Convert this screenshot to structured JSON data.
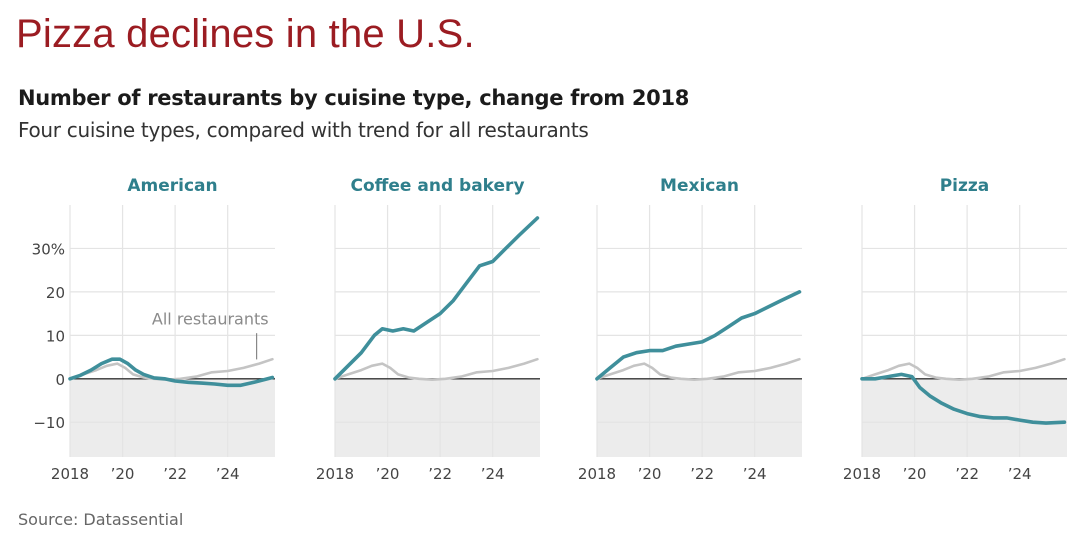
{
  "headline": "Pizza declines in the U.S.",
  "title": "Number of restaurants by cuisine type, change from 2018",
  "subtitle": "Four cuisine types, compared with trend for all restaurants",
  "source": "Source: Datassential",
  "colors": {
    "headline": "#9b1c22",
    "series": "#3f8f9b",
    "reference": "#c4c4c4",
    "negative_shade": "#ececec",
    "grid": "#ffffff",
    "panel_bg": "#ffffff",
    "zero_line": "#333333",
    "panel_title": "#2f7f8c",
    "tick": "#444444"
  },
  "chart_data": {
    "type": "line",
    "layout": "small-multiples",
    "x_range": [
      2018,
      2025.8
    ],
    "ylim": [
      -18,
      40
    ],
    "y_ticks": [
      -10,
      0,
      10,
      20,
      30
    ],
    "y_tick_labels": [
      "−10",
      "0",
      "10",
      "20",
      "30%"
    ],
    "x_ticks": [
      2018,
      2020,
      2022,
      2024
    ],
    "x_tick_labels": [
      "2018",
      "’20",
      "’22",
      "’24"
    ],
    "annotation": {
      "text": "All restaurants",
      "panel": "American",
      "at_x": 2025.1,
      "at_y": 4
    },
    "reference_series": {
      "name": "All restaurants",
      "x": [
        2018,
        2018.5,
        2019,
        2019.4,
        2019.8,
        2020.1,
        2020.4,
        2020.8,
        2021.2,
        2021.7,
        2022.2,
        2022.8,
        2023.4,
        2024,
        2024.6,
        2025.2,
        2025.7
      ],
      "values": [
        0,
        1,
        2,
        3,
        3.5,
        2.5,
        1,
        0.3,
        0,
        -0.2,
        0,
        0.5,
        1.5,
        1.8,
        2.5,
        3.5,
        4.5
      ]
    },
    "panels": [
      {
        "name": "American",
        "x": [
          2018,
          2018.4,
          2018.8,
          2019.2,
          2019.6,
          2019.9,
          2020.2,
          2020.5,
          2020.8,
          2021.2,
          2021.6,
          2022,
          2022.5,
          2023,
          2023.5,
          2024,
          2024.5,
          2025,
          2025.7
        ],
        "values": [
          0,
          0.8,
          2,
          3.5,
          4.5,
          4.5,
          3.5,
          2,
          1,
          0.2,
          0,
          -0.5,
          -0.8,
          -1,
          -1.2,
          -1.5,
          -1.5,
          -0.8,
          0.3
        ]
      },
      {
        "name": "Coffee and bakery",
        "x": [
          2018,
          2018.5,
          2019,
          2019.5,
          2019.8,
          2020.2,
          2020.6,
          2021,
          2021.5,
          2022,
          2022.5,
          2023,
          2023.5,
          2024,
          2024.5,
          2025,
          2025.7
        ],
        "values": [
          0,
          3,
          6,
          10,
          11.5,
          11,
          11.5,
          11,
          13,
          15,
          18,
          22,
          26,
          27,
          30,
          33,
          37
        ]
      },
      {
        "name": "Mexican",
        "x": [
          2018,
          2018.5,
          2019,
          2019.5,
          2020,
          2020.5,
          2021,
          2021.5,
          2022,
          2022.5,
          2023,
          2023.5,
          2024,
          2024.5,
          2025,
          2025.7
        ],
        "values": [
          0,
          2.5,
          5,
          6,
          6.5,
          6.5,
          7.5,
          8,
          8.5,
          10,
          12,
          14,
          15,
          16.5,
          18,
          20
        ]
      },
      {
        "name": "Pizza",
        "x": [
          2018,
          2018.5,
          2019,
          2019.5,
          2019.9,
          2020.2,
          2020.6,
          2021,
          2021.5,
          2022,
          2022.5,
          2023,
          2023.5,
          2024,
          2024.5,
          2025,
          2025.7
        ],
        "values": [
          0,
          0,
          0.5,
          1,
          0.5,
          -2,
          -4,
          -5.5,
          -7,
          -8,
          -8.7,
          -9,
          -9,
          -9.5,
          -10,
          -10.2,
          -10
        ]
      }
    ]
  }
}
